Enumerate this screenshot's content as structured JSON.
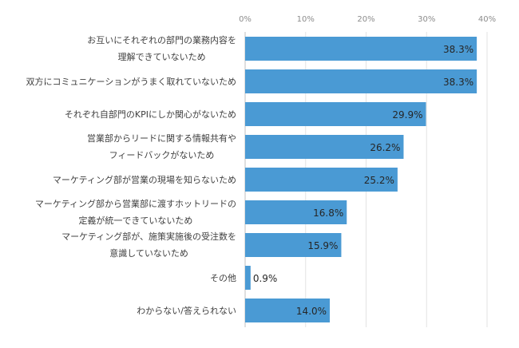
{
  "chart_data": {
    "type": "bar",
    "orientation": "horizontal",
    "title": "",
    "xlabel": "",
    "ylabel": "",
    "xlim": [
      0,
      40
    ],
    "x_ticks": [
      "0%",
      "10%",
      "20%",
      "30%",
      "40%"
    ],
    "x_tick_values": [
      0,
      10,
      20,
      30,
      40
    ],
    "tick_position": "top",
    "grid": true,
    "bar_color": "#4a9ad4",
    "categories": [
      "お互いにそれぞれの部門の業務内容を\n理解できていないため",
      "双方にコミュニケーションがうまく取れていないため",
      "それぞれ自部門のKPIにしか関心がないため",
      "営業部からリードに関する情報共有や\nフィードバックがないため",
      "マーケティング部が営業の現場を知らないため",
      "マーケティング部から営業部に渡すホットリードの\n定義が統一できていないため",
      "マーケティング部が、施策実施後の受注数を\n意識していないため",
      "その他",
      "わからない/答えられない"
    ],
    "values": [
      38.3,
      38.3,
      29.9,
      26.2,
      25.2,
      16.8,
      15.9,
      0.9,
      14.0
    ],
    "value_labels": [
      "38.3%",
      "38.3%",
      "29.9%",
      "26.2%",
      "25.2%",
      "16.8%",
      "15.9%",
      "0.9%",
      "14.0%"
    ]
  }
}
